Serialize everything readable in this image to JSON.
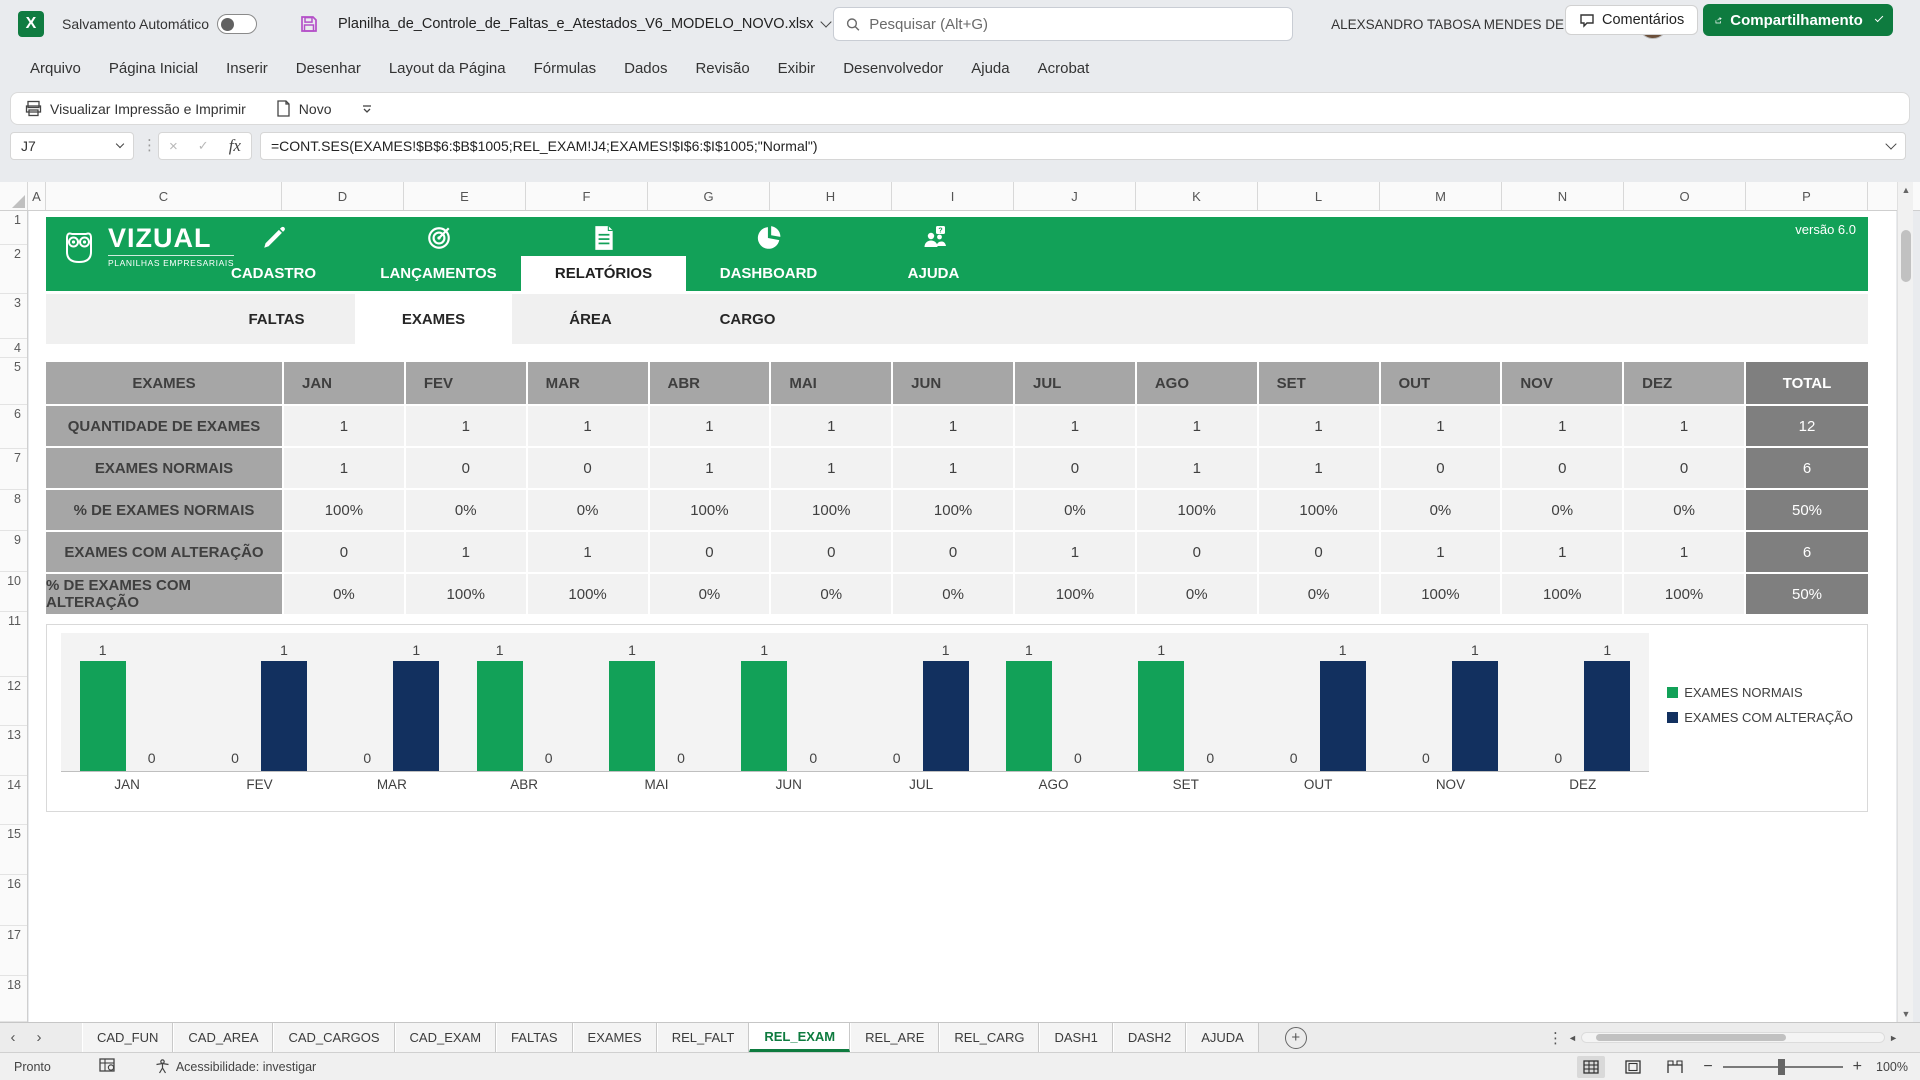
{
  "titlebar": {
    "autosave_label": "Salvamento Automático",
    "filename": "Planilha_de_Controle_de_Faltas_e_Atestados_V6_MODELO_NOVO.xlsx",
    "search_placeholder": "Pesquisar (Alt+G)",
    "user_name": "ALEXSANDRO TABOSA MENDES DE OLIVEIRA",
    "app_initial": "X"
  },
  "menubar": {
    "items": [
      "Arquivo",
      "Página Inicial",
      "Inserir",
      "Desenhar",
      "Layout da Página",
      "Fórmulas",
      "Dados",
      "Revisão",
      "Exibir",
      "Desenvolvedor",
      "Ajuda",
      "Acrobat"
    ],
    "comments_label": "Comentários",
    "share_label": "Compartilhamento"
  },
  "qat": {
    "print_preview_label": "Visualizar Impressão e Imprimir",
    "new_label": "Novo"
  },
  "formula_bar": {
    "cell_ref": "J7",
    "fx_label": "fx",
    "formula": "=CONT.SES(EXAMES!$B$6:$B$1005;REL_EXAM!J4;EXAMES!$I$6:$I$1005;\"Normal\")"
  },
  "grid": {
    "column_headers": [
      "A",
      "C",
      "D",
      "E",
      "F",
      "G",
      "H",
      "I",
      "J",
      "K",
      "L",
      "M",
      "N",
      "O",
      "P"
    ],
    "row_numbers": [
      "1",
      "2",
      "3",
      "4",
      "5",
      "6",
      "7",
      "8",
      "9",
      "10",
      "11",
      "12",
      "13",
      "14",
      "15",
      "16",
      "17",
      "18"
    ]
  },
  "banner": {
    "brand": "VIZUAL",
    "tagline": "PLANILHAS EMPRESARIAIS",
    "version": "versão 6.0",
    "tabs": [
      {
        "label": "CADASTRO",
        "icon": "pencil-icon",
        "active": false
      },
      {
        "label": "LANÇAMENTOS",
        "icon": "target-icon",
        "active": false
      },
      {
        "label": "RELATÓRIOS",
        "icon": "report-icon",
        "active": true
      },
      {
        "label": "DASHBOARD",
        "icon": "pie-icon",
        "active": false
      },
      {
        "label": "AJUDA",
        "icon": "help-people-icon",
        "active": false
      }
    ]
  },
  "subtabs": [
    {
      "label": "FALTAS",
      "active": false
    },
    {
      "label": "EXAMES",
      "active": true
    },
    {
      "label": "ÁREA",
      "active": false
    },
    {
      "label": "CARGO",
      "active": false
    }
  ],
  "report_table": {
    "corner_label": "EXAMES",
    "months": [
      "JAN",
      "FEV",
      "MAR",
      "ABR",
      "MAI",
      "JUN",
      "JUL",
      "AGO",
      "SET",
      "OUT",
      "NOV",
      "DEZ"
    ],
    "total_label": "TOTAL",
    "rows": [
      {
        "label": "QUANTIDADE DE EXAMES",
        "values": [
          "1",
          "1",
          "1",
          "1",
          "1",
          "1",
          "1",
          "1",
          "1",
          "1",
          "1",
          "1"
        ],
        "total": "12"
      },
      {
        "label": "EXAMES NORMAIS",
        "values": [
          "1",
          "0",
          "0",
          "1",
          "1",
          "1",
          "0",
          "1",
          "1",
          "0",
          "0",
          "0"
        ],
        "total": "6"
      },
      {
        "label": "% DE EXAMES NORMAIS",
        "values": [
          "100%",
          "0%",
          "0%",
          "100%",
          "100%",
          "100%",
          "0%",
          "100%",
          "100%",
          "0%",
          "0%",
          "0%"
        ],
        "total": "50%"
      },
      {
        "label": "EXAMES COM ALTERAÇÃO",
        "values": [
          "0",
          "1",
          "1",
          "0",
          "0",
          "0",
          "1",
          "0",
          "0",
          "1",
          "1",
          "1"
        ],
        "total": "6"
      },
      {
        "label": "% DE EXAMES COM ALTERAÇÃO",
        "values": [
          "0%",
          "100%",
          "100%",
          "0%",
          "0%",
          "0%",
          "100%",
          "0%",
          "0%",
          "100%",
          "100%",
          "100%"
        ],
        "total": "50%"
      }
    ]
  },
  "chart_data": {
    "type": "bar",
    "categories": [
      "JAN",
      "FEV",
      "MAR",
      "ABR",
      "MAI",
      "JUN",
      "JUL",
      "AGO",
      "SET",
      "OUT",
      "NOV",
      "DEZ"
    ],
    "series": [
      {
        "name": "EXAMES NORMAIS",
        "color": "#12a158",
        "values": [
          1,
          0,
          0,
          1,
          1,
          1,
          0,
          1,
          1,
          0,
          0,
          0
        ]
      },
      {
        "name": "EXAMES COM ALTERAÇÃO",
        "color": "#12305f",
        "values": [
          0,
          1,
          1,
          0,
          0,
          0,
          1,
          0,
          0,
          1,
          1,
          1
        ]
      }
    ],
    "ylim": [
      0,
      1
    ],
    "data_labels": true,
    "legend_position": "right",
    "grid": false
  },
  "sheet_tabs": {
    "tabs": [
      "CAD_FUN",
      "CAD_AREA",
      "CAD_CARGOS",
      "CAD_EXAM",
      "FALTAS",
      "EXAMES",
      "REL_FALT",
      "REL_EXAM",
      "REL_ARE",
      "REL_CARG",
      "DASH1",
      "DASH2",
      "AJUDA"
    ],
    "active": "REL_EXAM"
  },
  "status_bar": {
    "mode": "Pronto",
    "accessibility": "Acessibilidade: investigar",
    "zoom": "100%"
  },
  "colors": {
    "brand_green": "#12a158",
    "button_green": "#0e7b3f",
    "navy": "#12305f",
    "header_gray": "#a6a6a6",
    "total_gray": "#7f7f7f",
    "cell_light": "#f2f2f2",
    "save_icon_purple": "#b44fc8"
  }
}
